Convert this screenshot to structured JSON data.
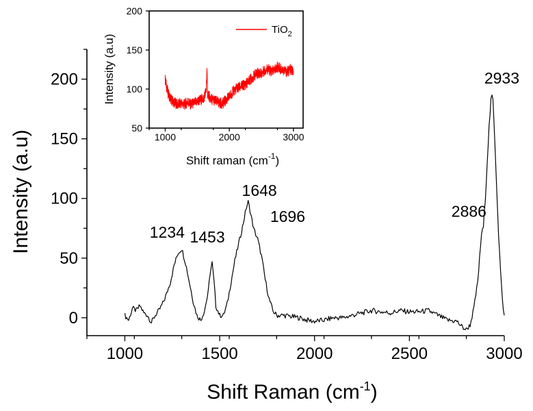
{
  "chart_data": [
    {
      "type": "line",
      "xlabel": "Shift Raman (cm",
      "xlabel_sup": "-1",
      "xlabel_end": ")",
      "ylabel": "Intensity (a.u)",
      "xlim": [
        800,
        3000
      ],
      "ylim": [
        -15,
        225
      ],
      "xticks": [
        "1000",
        "1500",
        "2000",
        "2500",
        "3000"
      ],
      "yticks": [
        "0",
        "50",
        "100",
        "150",
        "200"
      ],
      "color": "#000000",
      "series": [
        {
          "x": [
            1000,
            1020,
            1040,
            1060,
            1080,
            1100,
            1120,
            1140,
            1160,
            1180,
            1200,
            1220,
            1240,
            1260,
            1280,
            1300,
            1320,
            1340,
            1360,
            1380,
            1400,
            1420,
            1440,
            1450,
            1460,
            1470,
            1480,
            1500,
            1520,
            1540,
            1560,
            1580,
            1600,
            1620,
            1640,
            1650,
            1660,
            1680,
            1700,
            1720,
            1740,
            1760,
            1780,
            1800,
            1840,
            1880,
            1920,
            1960,
            2000,
            2050,
            2100,
            2150,
            2200,
            2250,
            2300,
            2350,
            2400,
            2450,
            2500,
            2550,
            2600,
            2650,
            2700,
            2750,
            2780,
            2800,
            2820,
            2840,
            2860,
            2870,
            2880,
            2890,
            2900,
            2910,
            2920,
            2930,
            2935,
            2940,
            2950,
            2960,
            2970,
            2980,
            2990,
            3000
          ],
          "y": [
            2,
            -2,
            8,
            6,
            10,
            4,
            2,
            -4,
            2,
            6,
            12,
            20,
            30,
            44,
            54,
            58,
            46,
            30,
            14,
            2,
            -2,
            6,
            22,
            38,
            46,
            30,
            10,
            2,
            2,
            12,
            30,
            48,
            62,
            76,
            92,
            97,
            90,
            74,
            66,
            52,
            32,
            16,
            6,
            2,
            2,
            1,
            0,
            -2,
            -3,
            -2,
            0,
            0,
            2,
            4,
            6,
            5,
            4,
            6,
            5,
            5,
            6,
            2,
            -2,
            -3,
            -8,
            -10,
            -6,
            8,
            30,
            50,
            70,
            76,
            100,
            130,
            160,
            182,
            186,
            182,
            150,
            110,
            70,
            40,
            15,
            2
          ]
        }
      ],
      "annotations": [
        {
          "x": 1234,
          "y": 58,
          "text": "1234"
        },
        {
          "x": 1453,
          "y": 46,
          "text": "1453"
        },
        {
          "x": 1648,
          "y": 97,
          "text": "1648"
        },
        {
          "x": 1696,
          "y": 66,
          "text": "1696"
        },
        {
          "x": 2886,
          "y": 76,
          "text": "2886"
        },
        {
          "x": 2933,
          "y": 186,
          "text": "2933"
        }
      ]
    },
    {
      "type": "line",
      "xlabel": "Shift raman (cm",
      "xlabel_sup": "-1",
      "xlabel_end": ")",
      "ylabel": "Intensity (a.u)",
      "xlim": [
        750,
        3150
      ],
      "ylim": [
        50,
        200
      ],
      "xticks": [
        "1000",
        "2000",
        "3000"
      ],
      "yticks": [
        "50",
        "100",
        "150",
        "200"
      ],
      "legend": "top-right",
      "color": "#ff0000",
      "series": [
        {
          "name": "TiO",
          "name_sub": "2",
          "x": [
            1000,
            1040,
            1080,
            1120,
            1160,
            1200,
            1250,
            1300,
            1350,
            1400,
            1450,
            1500,
            1550,
            1600,
            1640,
            1650,
            1660,
            1700,
            1750,
            1800,
            1850,
            1900,
            1950,
            2000,
            2050,
            2100,
            2150,
            2200,
            2250,
            2300,
            2350,
            2400,
            2450,
            2500,
            2550,
            2600,
            2650,
            2700,
            2750,
            2800,
            2850,
            2900,
            2950,
            3000
          ],
          "y": [
            112,
            96,
            88,
            84,
            82,
            80,
            82,
            80,
            84,
            80,
            82,
            84,
            86,
            88,
            98,
            125,
            95,
            88,
            86,
            84,
            82,
            82,
            86,
            90,
            96,
            100,
            102,
            104,
            106,
            110,
            114,
            118,
            121,
            120,
            124,
            126,
            122,
            124,
            128,
            126,
            124,
            122,
            125,
            122
          ]
        }
      ]
    }
  ]
}
